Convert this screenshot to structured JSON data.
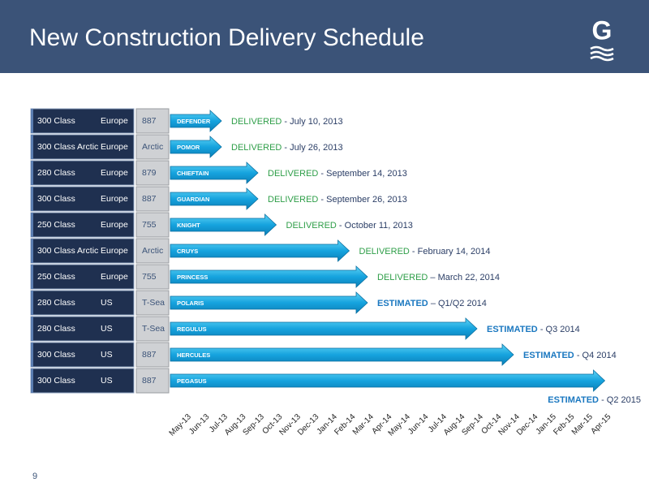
{
  "chart_data": {
    "type": "timeline",
    "title": "New Construction Delivery Schedule",
    "logo": "G",
    "page_number": 9,
    "categories": [
      "May-13",
      "Jun-13",
      "Jul-13",
      "Aug-13",
      "Sep-13",
      "Oct-13",
      "Nov-13",
      "Dec-13",
      "Jan-14",
      "Feb-14",
      "Mar-14",
      "Apr-14",
      "May-14",
      "Jun-14",
      "Jul-14",
      "Aug-14",
      "Sep-14",
      "Oct-14",
      "Nov-14",
      "Dec-14",
      "Jan-15",
      "Feb-15",
      "Mar-15",
      "Apr-15"
    ],
    "status_colors": {
      "DELIVERED": "#2e9e48",
      "ESTIMATED": "#1b78c0"
    },
    "rows": [
      {
        "class": "300 Class",
        "region": "Europe",
        "hull": "887",
        "vessel": "DEFENDER",
        "status": "DELIVERED",
        "detail": "- July 10, 2013",
        "end": "Jul-13"
      },
      {
        "class": "300 Class Arctic",
        "region": "Europe",
        "hull": "Arctic",
        "vessel": "POMOR",
        "status": "DELIVERED",
        "detail": "- July 26, 2013",
        "end": "Jul-13"
      },
      {
        "class": "280 Class",
        "region": "Europe",
        "hull": "879",
        "vessel": "CHIEFTAIN",
        "status": "DELIVERED",
        "detail": "- September 14, 2013",
        "end": "Sep-13"
      },
      {
        "class": "300 Class",
        "region": "Europe",
        "hull": "887",
        "vessel": "GUARDIAN",
        "status": "DELIVERED",
        "detail": "- September 26, 2013",
        "end": "Sep-13"
      },
      {
        "class": "250 Class",
        "region": "Europe",
        "hull": "755",
        "vessel": "KNIGHT",
        "status": "DELIVERED",
        "detail": "- October 11, 2013",
        "end": "Oct-13"
      },
      {
        "class": "300 Class Arctic",
        "region": "Europe",
        "hull": "Arctic",
        "vessel": "CRUYS",
        "status": "DELIVERED",
        "detail": "- February 14, 2014",
        "end": "Feb-14"
      },
      {
        "class": "250 Class",
        "region": "Europe",
        "hull": "755",
        "vessel": "PRINCESS",
        "status": "DELIVERED",
        "detail": "– March 22, 2014",
        "end": "Mar-14"
      },
      {
        "class": "280 Class",
        "region": "US",
        "hull": "T-Sea",
        "vessel": "POLARIS",
        "status": "ESTIMATED",
        "detail": "– Q1/Q2 2014",
        "end": "Mar-14"
      },
      {
        "class": "280 Class",
        "region": "US",
        "hull": "T-Sea",
        "vessel": "REGULUS",
        "status": "ESTIMATED",
        "detail": "- Q3 2014",
        "end": "Sep-14"
      },
      {
        "class": "300 Class",
        "region": "US",
        "hull": "887",
        "vessel": "HERCULES",
        "status": "ESTIMATED",
        "detail": "- Q4 2014",
        "end": "Nov-14"
      },
      {
        "class": "300 Class",
        "region": "US",
        "hull": "887",
        "vessel": "PEGASUS",
        "status": "ESTIMATED",
        "detail": "- Q2 2015",
        "end": "Apr-15"
      }
    ]
  }
}
